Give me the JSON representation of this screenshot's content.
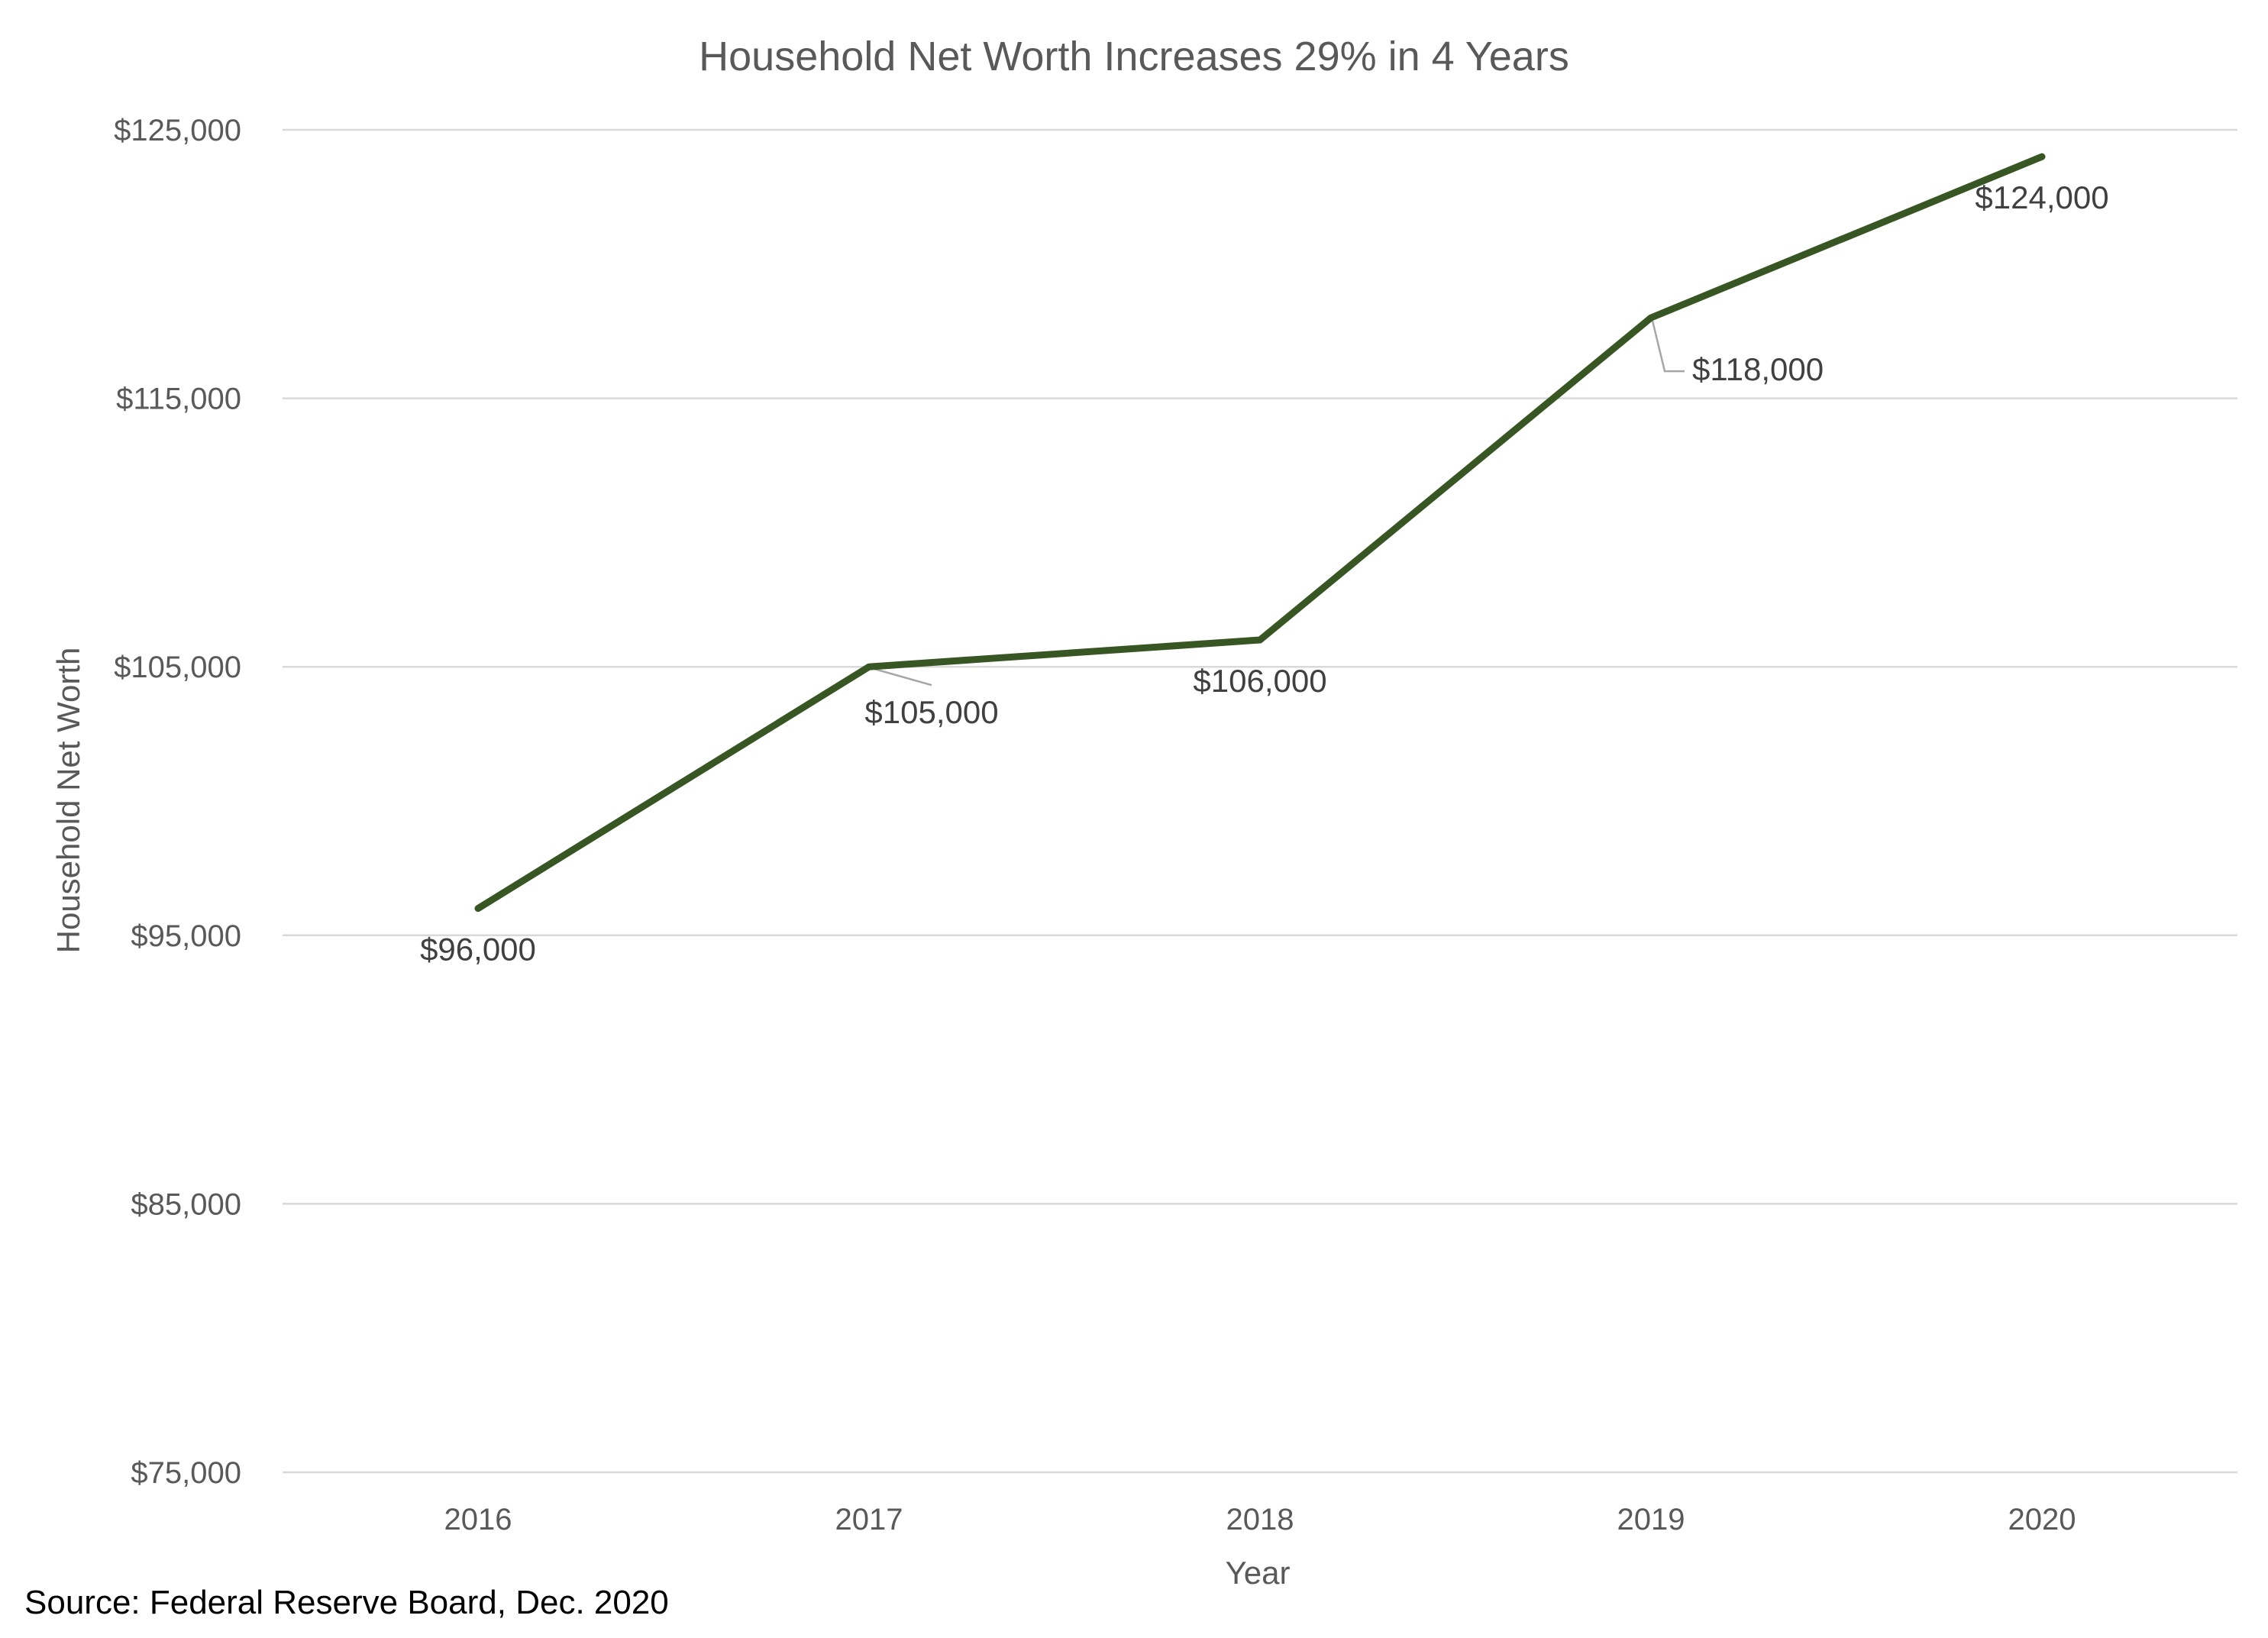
{
  "chart_data": {
    "type": "line",
    "title": "Household Net Worth Increases 29% in 4 Years",
    "xlabel": "Year",
    "ylabel": "Household Net Worth",
    "categories": [
      "2016",
      "2017",
      "2018",
      "2019",
      "2020"
    ],
    "series": [
      {
        "values": [
          96000,
          105000,
          106000,
          118000,
          124000
        ],
        "labels": [
          "$96,000",
          "$105,000",
          "$106,000",
          "$118,000",
          "$124,000"
        ],
        "color": "#375623"
      }
    ],
    "ylim": [
      75000,
      125000
    ],
    "yticks": [
      75000,
      85000,
      95000,
      105000,
      115000,
      125000
    ],
    "ytick_labels": [
      "$75,000",
      "$85,000",
      "$95,000",
      "$105,000",
      "$115,000",
      "$125,000"
    ],
    "grid": true,
    "legend": "none",
    "gridline_color": "#d9d9d9"
  },
  "source_note": "Source: Federal Reserve Board, Dec. 2020"
}
